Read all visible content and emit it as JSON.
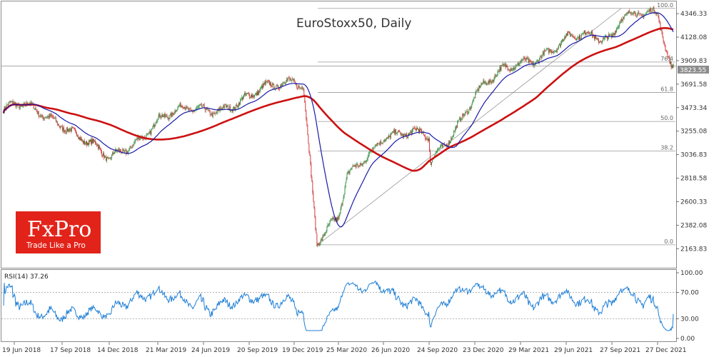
{
  "chart_data": {
    "type": "candlestick",
    "title": "EuroStoxx50, Daily",
    "price": {
      "ylim": [
        2020,
        4420
      ],
      "ticks": [
        4346.33,
        4128.08,
        3909.83,
        3691.58,
        3473.34,
        3255.08,
        3036.83,
        2818.58,
        2600.33,
        2382.08,
        2163.83
      ],
      "current_price": 3823.55,
      "reference_level": 3860,
      "series": [
        {
          "name": "",
          "color": "#cc1111"
        },
        {
          "name": "",
          "color": "#1a1aa8"
        }
      ]
    },
    "x_labels": [
      "19 Jun 2018",
      "17 Sep 2018",
      "14 Dec 2018",
      "21 Mar 2019",
      "24 Jun 2019",
      "20 Sep 2019",
      "19 Dec 2019",
      "25 Mar 2020",
      "26 Jun 2020",
      "24 Sep 2020",
      "23 Dec 2020",
      "29 Mar 2021",
      "29 Jun 2021",
      "27 Sep 2021",
      "27 Dec 2021"
    ],
    "key_points": [
      {
        "date": "19 Jun 2018",
        "close": 3480
      },
      {
        "date": "17 Sep 2018",
        "close": 3360
      },
      {
        "date": "14 Dec 2018",
        "close": 2960
      },
      {
        "date": "21 Mar 2019",
        "close": 3370
      },
      {
        "date": "24 Jun 2019",
        "close": 3460
      },
      {
        "date": "20 Sep 2019",
        "close": 3550
      },
      {
        "date": "19 Dec 2019",
        "close": 3760
      },
      {
        "date": "25 Mar 2020",
        "close": 2410
      },
      {
        "date": "26 Jun 2020",
        "close": 3250
      },
      {
        "date": "24 Sep 2020",
        "close": 3180
      },
      {
        "date": "23 Dec 2020",
        "close": 3600
      },
      {
        "date": "29 Mar 2021",
        "close": 3900
      },
      {
        "date": "29 Jun 2021",
        "close": 4090
      },
      {
        "date": "27 Sep 2021",
        "close": 4150
      },
      {
        "date": "27 Dec 2021",
        "close": 4290
      }
    ],
    "fibonacci": {
      "levels": [
        {
          "label": "100.0",
          "value": 4395
        },
        {
          "label": "76.4",
          "value": 3897
        },
        {
          "label": "61.8",
          "value": 3614
        },
        {
          "label": "50.0",
          "value": 3345
        },
        {
          "label": "38.2",
          "value": 3071
        },
        {
          "label": "0.0",
          "value": 2200
        }
      ]
    },
    "rsi": {
      "label": "RSI(14) 37.26",
      "ylim": [
        0,
        100
      ],
      "ticks": [
        "100.00",
        "70.00",
        "30.00",
        "0.00"
      ],
      "levels": [
        70,
        30
      ],
      "color": "#1f7fd6"
    }
  },
  "branding": {
    "logo": "FxPro",
    "tagline": "Trade Like a Pro",
    "color": "#e2231a"
  }
}
